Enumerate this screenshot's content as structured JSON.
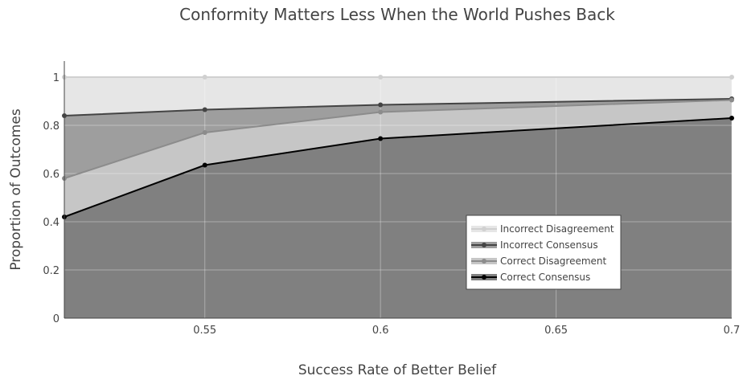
{
  "chart_data": {
    "type": "area",
    "title": "Conformity Matters Less When the World Pushes Back",
    "xlabel": "Success Rate of Better Belief",
    "ylabel": "Proportion of Outcomes",
    "x": [
      0.51,
      0.55,
      0.6,
      0.7
    ],
    "xlim": [
      0.51,
      0.7
    ],
    "ylim": [
      0,
      1
    ],
    "x_ticks": [
      0.55,
      0.6,
      0.65,
      0.7
    ],
    "x_tick_labels": [
      "0.55",
      "0.6",
      "0.65",
      "0.7"
    ],
    "y_ticks": [
      0,
      0.2,
      0.4,
      0.6,
      0.8,
      1
    ],
    "y_tick_labels": [
      "0",
      "0.2",
      "0.4",
      "0.6",
      "0.8",
      "1"
    ],
    "stacked": true,
    "grid": true,
    "legend_position": "bottom-right",
    "series": [
      {
        "name": "Incorrect Disagreement",
        "cumulative": [
          1,
          1,
          1,
          1
        ],
        "fill": "#e6e6e6",
        "line": "#d0d0d0"
      },
      {
        "name": "Incorrect Consensus",
        "cumulative": [
          0.84,
          0.865,
          0.885,
          0.91
        ],
        "fill": "#9e9e9e",
        "line": "#444444"
      },
      {
        "name": "Correct Disagreement",
        "cumulative": [
          0.58,
          0.77,
          0.855,
          0.905
        ],
        "fill": "#c6c6c6",
        "line": "#8c8c8c"
      },
      {
        "name": "Correct Consensus",
        "cumulative": [
          0.42,
          0.635,
          0.745,
          0.83
        ],
        "fill": "#808080",
        "line": "#000000"
      }
    ]
  }
}
